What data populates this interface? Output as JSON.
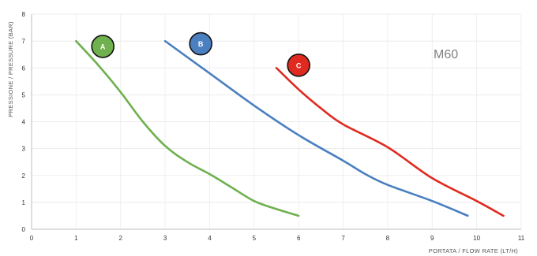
{
  "chart_data": {
    "type": "line",
    "title": "M60",
    "xlabel": "PORTATA / FLOW RATE (LT/H)",
    "ylabel": "PRESSIONE / PRESSURE (BAR)",
    "xlim": [
      0,
      11
    ],
    "ylim": [
      0,
      8
    ],
    "xticks": [
      "0",
      "1",
      "2",
      "3",
      "4",
      "5",
      "6",
      "7",
      "8",
      "9",
      "10",
      "11"
    ],
    "yticks": [
      "0",
      "1",
      "2",
      "3",
      "4",
      "5",
      "6",
      "7",
      "8"
    ],
    "grid": true,
    "series": [
      {
        "name": "A",
        "color": "#6fb04f",
        "points": [
          [
            1.0,
            7.0
          ],
          [
            1.5,
            6.1
          ],
          [
            2.0,
            5.1
          ],
          [
            2.5,
            4.0
          ],
          [
            3.0,
            3.1
          ],
          [
            3.5,
            2.5
          ],
          [
            4.0,
            2.05
          ],
          [
            4.5,
            1.55
          ],
          [
            5.0,
            1.05
          ],
          [
            5.5,
            0.75
          ],
          [
            6.0,
            0.5
          ]
        ]
      },
      {
        "name": "B",
        "color": "#4a7fc0",
        "points": [
          [
            3.0,
            7.0
          ],
          [
            4.0,
            5.8
          ],
          [
            5.0,
            4.6
          ],
          [
            6.0,
            3.5
          ],
          [
            7.0,
            2.55
          ],
          [
            7.5,
            2.05
          ],
          [
            8.0,
            1.65
          ],
          [
            9.0,
            1.05
          ],
          [
            9.8,
            0.5
          ]
        ]
      },
      {
        "name": "C",
        "color": "#e02a20",
        "points": [
          [
            5.5,
            6.0
          ],
          [
            6.0,
            5.2
          ],
          [
            6.5,
            4.5
          ],
          [
            7.0,
            3.9
          ],
          [
            8.0,
            3.05
          ],
          [
            9.0,
            1.9
          ],
          [
            10.0,
            1.05
          ],
          [
            10.6,
            0.5
          ]
        ]
      }
    ],
    "markers": [
      {
        "label": "A",
        "color": "#6fb04f",
        "x": 1.6,
        "y": 6.8
      },
      {
        "label": "B",
        "color": "#4a7fc0",
        "x": 3.8,
        "y": 6.9
      },
      {
        "label": "C",
        "color": "#e02a20",
        "x": 6.0,
        "y": 6.1
      }
    ]
  }
}
